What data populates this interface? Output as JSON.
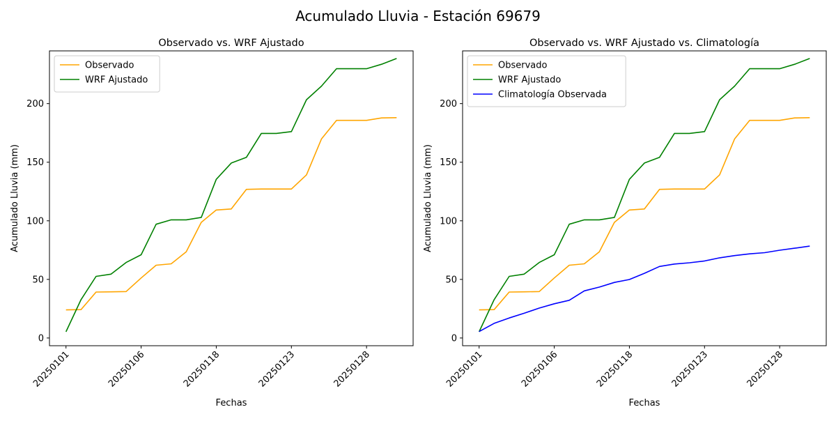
{
  "figure": {
    "suptitle": "Acumulado Lluvia - Estación 69679"
  },
  "chart_data": [
    {
      "type": "line",
      "title": "Observado vs. WRF Ajustado",
      "xlabel": "Fechas",
      "ylabel": "Acumulado Lluvia (mm)",
      "ylim": [
        -6.6,
        245
      ],
      "yticks": [
        0,
        50,
        100,
        150,
        200
      ],
      "xtick_labels": [
        {
          "index": 0,
          "label": "20250101"
        },
        {
          "index": 5,
          "label": "20250106"
        },
        {
          "index": 10,
          "label": "20250118"
        },
        {
          "index": 15,
          "label": "20250123"
        },
        {
          "index": 20,
          "label": "20250128"
        }
      ],
      "legend": "top-left",
      "grid": false,
      "series": [
        {
          "name": "Observado",
          "color": "#ffa500",
          "values": [
            24,
            24.2,
            39.2,
            39.4,
            39.6,
            51.2,
            62.1,
            63.3,
            73.5,
            98.7,
            109.2,
            110.1,
            126.8,
            127.1,
            127.1,
            127.1,
            139.2,
            169.8,
            185.7,
            185.7,
            185.7,
            187.8,
            188.0
          ]
        },
        {
          "name": "WRF Ajustado",
          "color": "#008000",
          "values": [
            5.3,
            32.7,
            52.6,
            54.5,
            64.4,
            71,
            97.1,
            100.8,
            100.8,
            102.9,
            135.4,
            149.3,
            154.1,
            174.6,
            174.6,
            176.1,
            203.3,
            214.9,
            229.8,
            229.8,
            229.8,
            233.6,
            238.5
          ]
        }
      ]
    },
    {
      "type": "line",
      "title": "Observado vs. WRF Ajustado vs. Climatología",
      "xlabel": "Fechas",
      "ylabel": "Acumulado Lluvia (mm)",
      "ylim": [
        -6.6,
        245
      ],
      "yticks": [
        0,
        50,
        100,
        150,
        200
      ],
      "xtick_labels": [
        {
          "index": 0,
          "label": "20250101"
        },
        {
          "index": 5,
          "label": "20250106"
        },
        {
          "index": 10,
          "label": "20250118"
        },
        {
          "index": 15,
          "label": "20250123"
        },
        {
          "index": 20,
          "label": "20250128"
        }
      ],
      "legend": "top-left",
      "grid": false,
      "series": [
        {
          "name": "Observado",
          "color": "#ffa500",
          "values": [
            24,
            24.2,
            39.2,
            39.4,
            39.6,
            51.2,
            62.1,
            63.3,
            73.5,
            98.7,
            109.2,
            110.1,
            126.8,
            127.1,
            127.1,
            127.1,
            139.2,
            169.8,
            185.7,
            185.7,
            185.7,
            187.8,
            188.0
          ]
        },
        {
          "name": "WRF Ajustado",
          "color": "#008000",
          "values": [
            5.3,
            32.7,
            52.6,
            54.5,
            64.4,
            71,
            97.1,
            100.8,
            100.8,
            102.9,
            135.4,
            149.3,
            154.1,
            174.6,
            174.6,
            176.1,
            203.3,
            214.9,
            229.8,
            229.8,
            229.8,
            233.6,
            238.5
          ]
        },
        {
          "name": "Climatología Observada",
          "color": "#0000ff",
          "values": [
            5.5,
            12.5,
            17.1,
            21.1,
            25.5,
            29.2,
            32.2,
            40.2,
            43.4,
            47.4,
            49.9,
            55.2,
            61.0,
            63.1,
            64.2,
            65.7,
            68.4,
            70.3,
            71.8,
            72.8,
            74.9,
            76.6,
            78.4
          ]
        }
      ]
    }
  ]
}
